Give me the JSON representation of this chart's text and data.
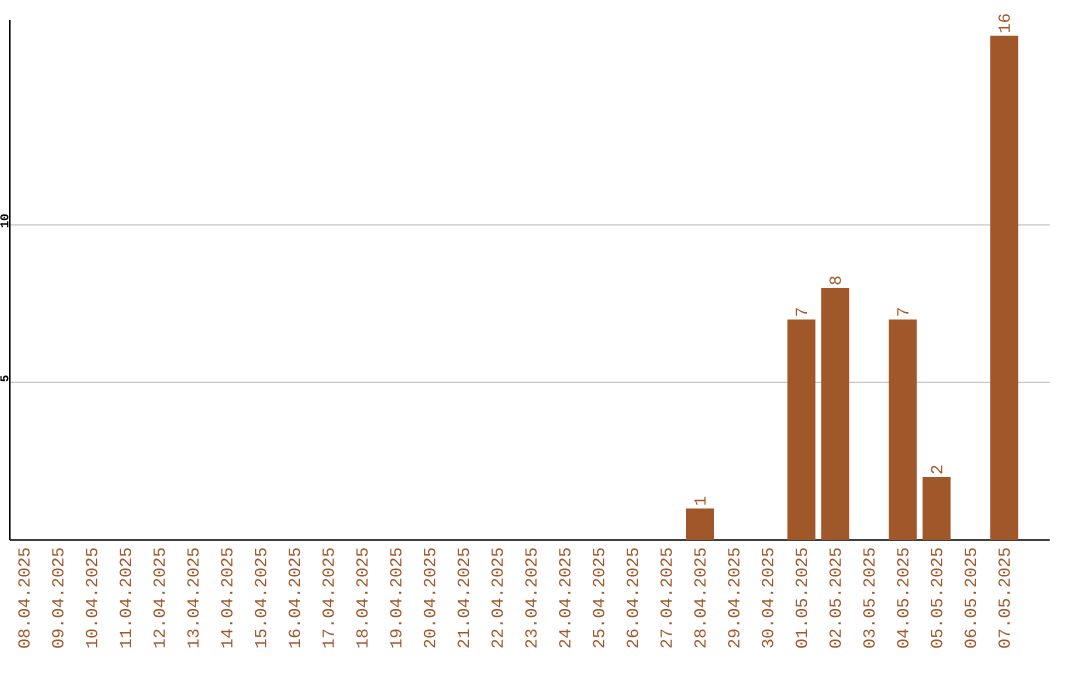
{
  "chart_data": {
    "type": "bar",
    "categories": [
      "08.04.2025",
      "09.04.2025",
      "10.04.2025",
      "11.04.2025",
      "12.04.2025",
      "13.04.2025",
      "14.04.2025",
      "15.04.2025",
      "16.04.2025",
      "17.04.2025",
      "18.04.2025",
      "19.04.2025",
      "20.04.2025",
      "21.04.2025",
      "22.04.2025",
      "23.04.2025",
      "24.04.2025",
      "25.04.2025",
      "26.04.2025",
      "27.04.2025",
      "28.04.2025",
      "29.04.2025",
      "30.04.2025",
      "01.05.2025",
      "02.05.2025",
      "03.05.2025",
      "04.05.2025",
      "05.05.2025",
      "06.05.2025",
      "07.05.2025"
    ],
    "values": [
      0,
      0,
      0,
      0,
      0,
      0,
      0,
      0,
      0,
      0,
      0,
      0,
      0,
      0,
      0,
      0,
      0,
      0,
      0,
      0,
      1,
      0,
      0,
      7,
      8,
      0,
      7,
      2,
      0,
      16
    ],
    "value_labels": [
      null,
      null,
      null,
      null,
      null,
      null,
      null,
      null,
      null,
      null,
      null,
      null,
      null,
      null,
      null,
      null,
      null,
      null,
      null,
      null,
      "1",
      null,
      null,
      "7",
      "8",
      null,
      "7",
      "2",
      null,
      "16"
    ],
    "color": "#a0572a",
    "ylim": [
      0,
      16.5
    ],
    "yticks": [
      5,
      10
    ],
    "grid": "y"
  }
}
